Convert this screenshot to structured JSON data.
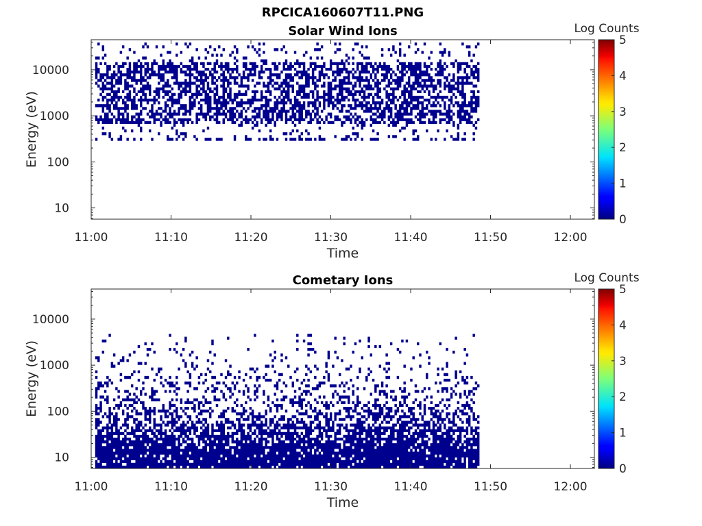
{
  "figure_title": "RPCICA160607T11.PNG",
  "chart_data": [
    {
      "type": "heatmap",
      "title": "Solar Wind Ions",
      "xlabel": "Time",
      "ylabel": "Energy (eV)",
      "colorbar_label": "Log Counts",
      "x_ticks": [
        "11:00",
        "11:10",
        "11:20",
        "11:30",
        "11:40",
        "11:50",
        "12:00"
      ],
      "x_tick_minutes": [
        0,
        10,
        20,
        30,
        40,
        50,
        60
      ],
      "xlim_minutes": [
        0,
        63
      ],
      "y_ticks": [
        10,
        100,
        1000,
        10000
      ],
      "y_tick_labels": [
        "10",
        "100",
        "1000",
        "10000"
      ],
      "ylim": [
        5.7,
        45000
      ],
      "y_scale": "log",
      "colorbar_ticks": [
        "0",
        "1",
        "2",
        "3",
        "4",
        "5"
      ],
      "clim": [
        0,
        5
      ],
      "data_time_range_minutes": [
        0.5,
        48.6
      ],
      "energy_band_eV": [
        300,
        40000
      ],
      "core_band_eV": [
        700,
        15000
      ],
      "dominant_log_counts": 0,
      "colormap": "jet",
      "cell_color": "#00008f"
    },
    {
      "type": "heatmap",
      "title": "Cometary Ions",
      "xlabel": "Time",
      "ylabel": "Energy (eV)",
      "colorbar_label": "Log Counts",
      "x_ticks": [
        "11:00",
        "11:10",
        "11:20",
        "11:30",
        "11:40",
        "11:50",
        "12:00"
      ],
      "x_tick_minutes": [
        0,
        10,
        20,
        30,
        40,
        50,
        60
      ],
      "xlim_minutes": [
        0,
        63
      ],
      "y_ticks": [
        10,
        100,
        1000,
        10000
      ],
      "y_tick_labels": [
        "10",
        "100",
        "1000",
        "10000"
      ],
      "ylim": [
        5.7,
        45000
      ],
      "y_scale": "log",
      "colorbar_ticks": [
        "0",
        "1",
        "2",
        "3",
        "4",
        "5"
      ],
      "clim": [
        0,
        5
      ],
      "data_time_range_minutes": [
        0.5,
        48.6
      ],
      "energy_band_eV": [
        5.7,
        4500
      ],
      "dominant_log_counts": 0,
      "colormap": "jet",
      "cell_color": "#00008f"
    }
  ]
}
